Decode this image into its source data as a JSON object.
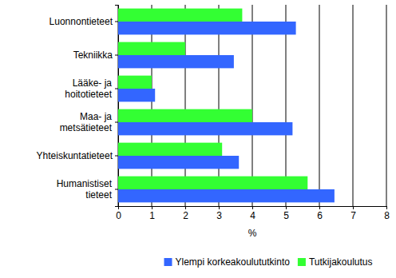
{
  "chart_data": {
    "type": "bar",
    "orientation": "horizontal",
    "categories": [
      "Luonnontieteet",
      "Tekniikka",
      "Lääke- ja hoitotieteet",
      "Maa- ja metsätieteet",
      "Yhteiskuntatieteet",
      "Humanistiset tieteet"
    ],
    "series": [
      {
        "name": "Ylempi korkeakoulututkinto",
        "color": "#3366ff",
        "values": [
          5.3,
          3.45,
          1.1,
          5.2,
          3.6,
          6.45
        ]
      },
      {
        "name": "Tutkijakoulutus",
        "color": "#33ff33",
        "values": [
          3.7,
          2.0,
          1.0,
          4.0,
          3.1,
          5.65
        ]
      }
    ],
    "x_label": "%",
    "xlim": [
      0,
      8
    ],
    "xticks": [
      0,
      1,
      2,
      3,
      4,
      5,
      6,
      7,
      8
    ],
    "grid": true,
    "legend": "bottom"
  }
}
